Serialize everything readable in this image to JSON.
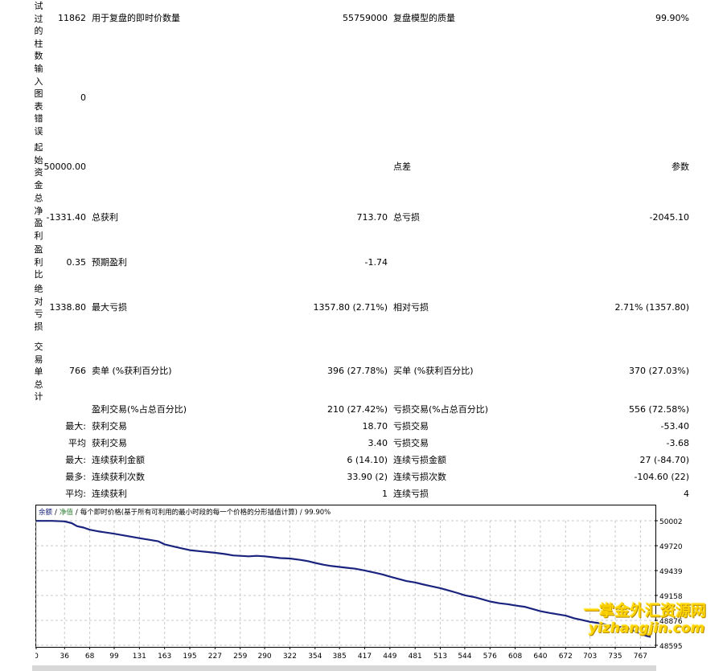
{
  "labels_vertical": {
    "bars_tested": "试过的柱数",
    "chart_errors": "输入图表错误",
    "initial_deposit": "起始资金",
    "net_profit": "总净盈利",
    "profit_factor": "盈利比",
    "abs_drawdown": "绝对亏损",
    "total_trades": "交易单总计"
  },
  "row1": {
    "bars_value": "11862",
    "ticks_label": "用于复盘的即时价数量",
    "ticks_value": "55759000",
    "quality_label": "复盘模型的质量",
    "quality_value": "99.90%"
  },
  "row2": {
    "errors_value": "0"
  },
  "row3": {
    "deposit_value": "50000.00",
    "spread_label": "点差",
    "spread_value": "参数"
  },
  "row4": {
    "net_value": "-1331.40",
    "gross_profit_label": "总获利",
    "gross_profit_value": "713.70",
    "gross_loss_label": "总亏损",
    "gross_loss_value": "-2045.10"
  },
  "row5": {
    "pf_value": "0.35",
    "expected_label": "预期盈利",
    "expected_value": "-1.74"
  },
  "row6": {
    "abs_dd_value": "1338.80",
    "max_dd_label": "最大亏损",
    "max_dd_value": "1357.80 (2.71%)",
    "rel_dd_label": "相对亏损",
    "rel_dd_value": "2.71% (1357.80)"
  },
  "row7": {
    "trades_value": "766",
    "short_label": "卖单 (%获利百分比)",
    "short_value": "396 (27.78%)",
    "long_label": "买单 (%获利百分比)",
    "long_value": "370 (27.03%)"
  },
  "row8": {
    "profit_trades_label": "盈利交易(%占总百分比)",
    "profit_trades_value": "210 (27.42%)",
    "loss_trades_label": "亏损交易(%占总百分比)",
    "loss_trades_value": "556 (72.58%)"
  },
  "row9": {
    "prefix": "最大:",
    "label_a": "获利交易",
    "value_a": "18.70",
    "label_b": "亏损交易",
    "value_b": "-53.40"
  },
  "row10": {
    "prefix": "平均",
    "label_a": "获利交易",
    "value_a": "3.40",
    "label_b": "亏损交易",
    "value_b": "-3.68"
  },
  "row11": {
    "prefix": "最大:",
    "label_a": "连续获利金额",
    "value_a": "6 (14.10)",
    "label_b": "连续亏损金额",
    "value_b": "27 (-84.70)"
  },
  "row12": {
    "prefix": "最多:",
    "label_a": "连续获利次数",
    "value_a": "33.90 (2)",
    "label_b": "连续亏损次数",
    "value_b": "-104.60 (22)"
  },
  "row13": {
    "prefix": "平均:",
    "label_a": "连续获利",
    "value_a": "1",
    "label_b": "连续亏损",
    "value_b": "4"
  },
  "chart_data": {
    "type": "line",
    "legend": {
      "balance": "余额",
      "equity": "净值",
      "description": "每个即时价格(基于所有可利用的最小时段的每一个价格的分形插值计算)",
      "quality": "99.90%"
    },
    "x_ticks": [
      "0",
      "36",
      "68",
      "99",
      "131",
      "163",
      "195",
      "227",
      "259",
      "290",
      "322",
      "354",
      "385",
      "417",
      "449",
      "481",
      "513",
      "544",
      "576",
      "608",
      "640",
      "672",
      "703",
      "735",
      "767"
    ],
    "y_ticks": [
      "50002",
      "49720",
      "49439",
      "49158",
      "48876",
      "48595"
    ],
    "ylim": [
      48595,
      50002
    ],
    "xlim": [
      0,
      785
    ],
    "series": [
      {
        "name": "余额",
        "color": "#1a237e",
        "x": [
          0,
          20,
          36,
          45,
          52,
          60,
          68,
          80,
          99,
          115,
          131,
          145,
          155,
          163,
          175,
          185,
          195,
          210,
          227,
          240,
          250,
          259,
          270,
          280,
          290,
          300,
          310,
          322,
          335,
          345,
          354,
          365,
          375,
          385,
          395,
          405,
          417,
          430,
          440,
          449,
          460,
          470,
          481,
          490,
          500,
          513,
          525,
          535,
          544,
          556,
          566,
          576,
          588,
          598,
          608,
          620,
          630,
          640,
          652,
          662,
          672,
          683,
          693,
          703,
          715,
          725,
          735,
          745,
          755,
          767,
          775,
          780
        ],
        "y": [
          50000,
          50000,
          49995,
          49975,
          49940,
          49925,
          49900,
          49880,
          49855,
          49830,
          49805,
          49785,
          49770,
          49735,
          49710,
          49690,
          49670,
          49655,
          49640,
          49625,
          49610,
          49605,
          49600,
          49605,
          49600,
          49590,
          49580,
          49575,
          49560,
          49545,
          49525,
          49505,
          49490,
          49480,
          49470,
          49460,
          49440,
          49415,
          49395,
          49370,
          49345,
          49320,
          49305,
          49285,
          49265,
          49240,
          49210,
          49185,
          49160,
          49140,
          49115,
          49090,
          49070,
          49060,
          49045,
          49030,
          49005,
          48980,
          48960,
          48945,
          48930,
          48900,
          48880,
          48860,
          48845,
          48825,
          48810,
          48795,
          48775,
          48725,
          48700,
          48690
        ]
      }
    ]
  },
  "watermark": {
    "line1": "一掌金外汇资源网",
    "line2": "yizhangjin.com"
  }
}
